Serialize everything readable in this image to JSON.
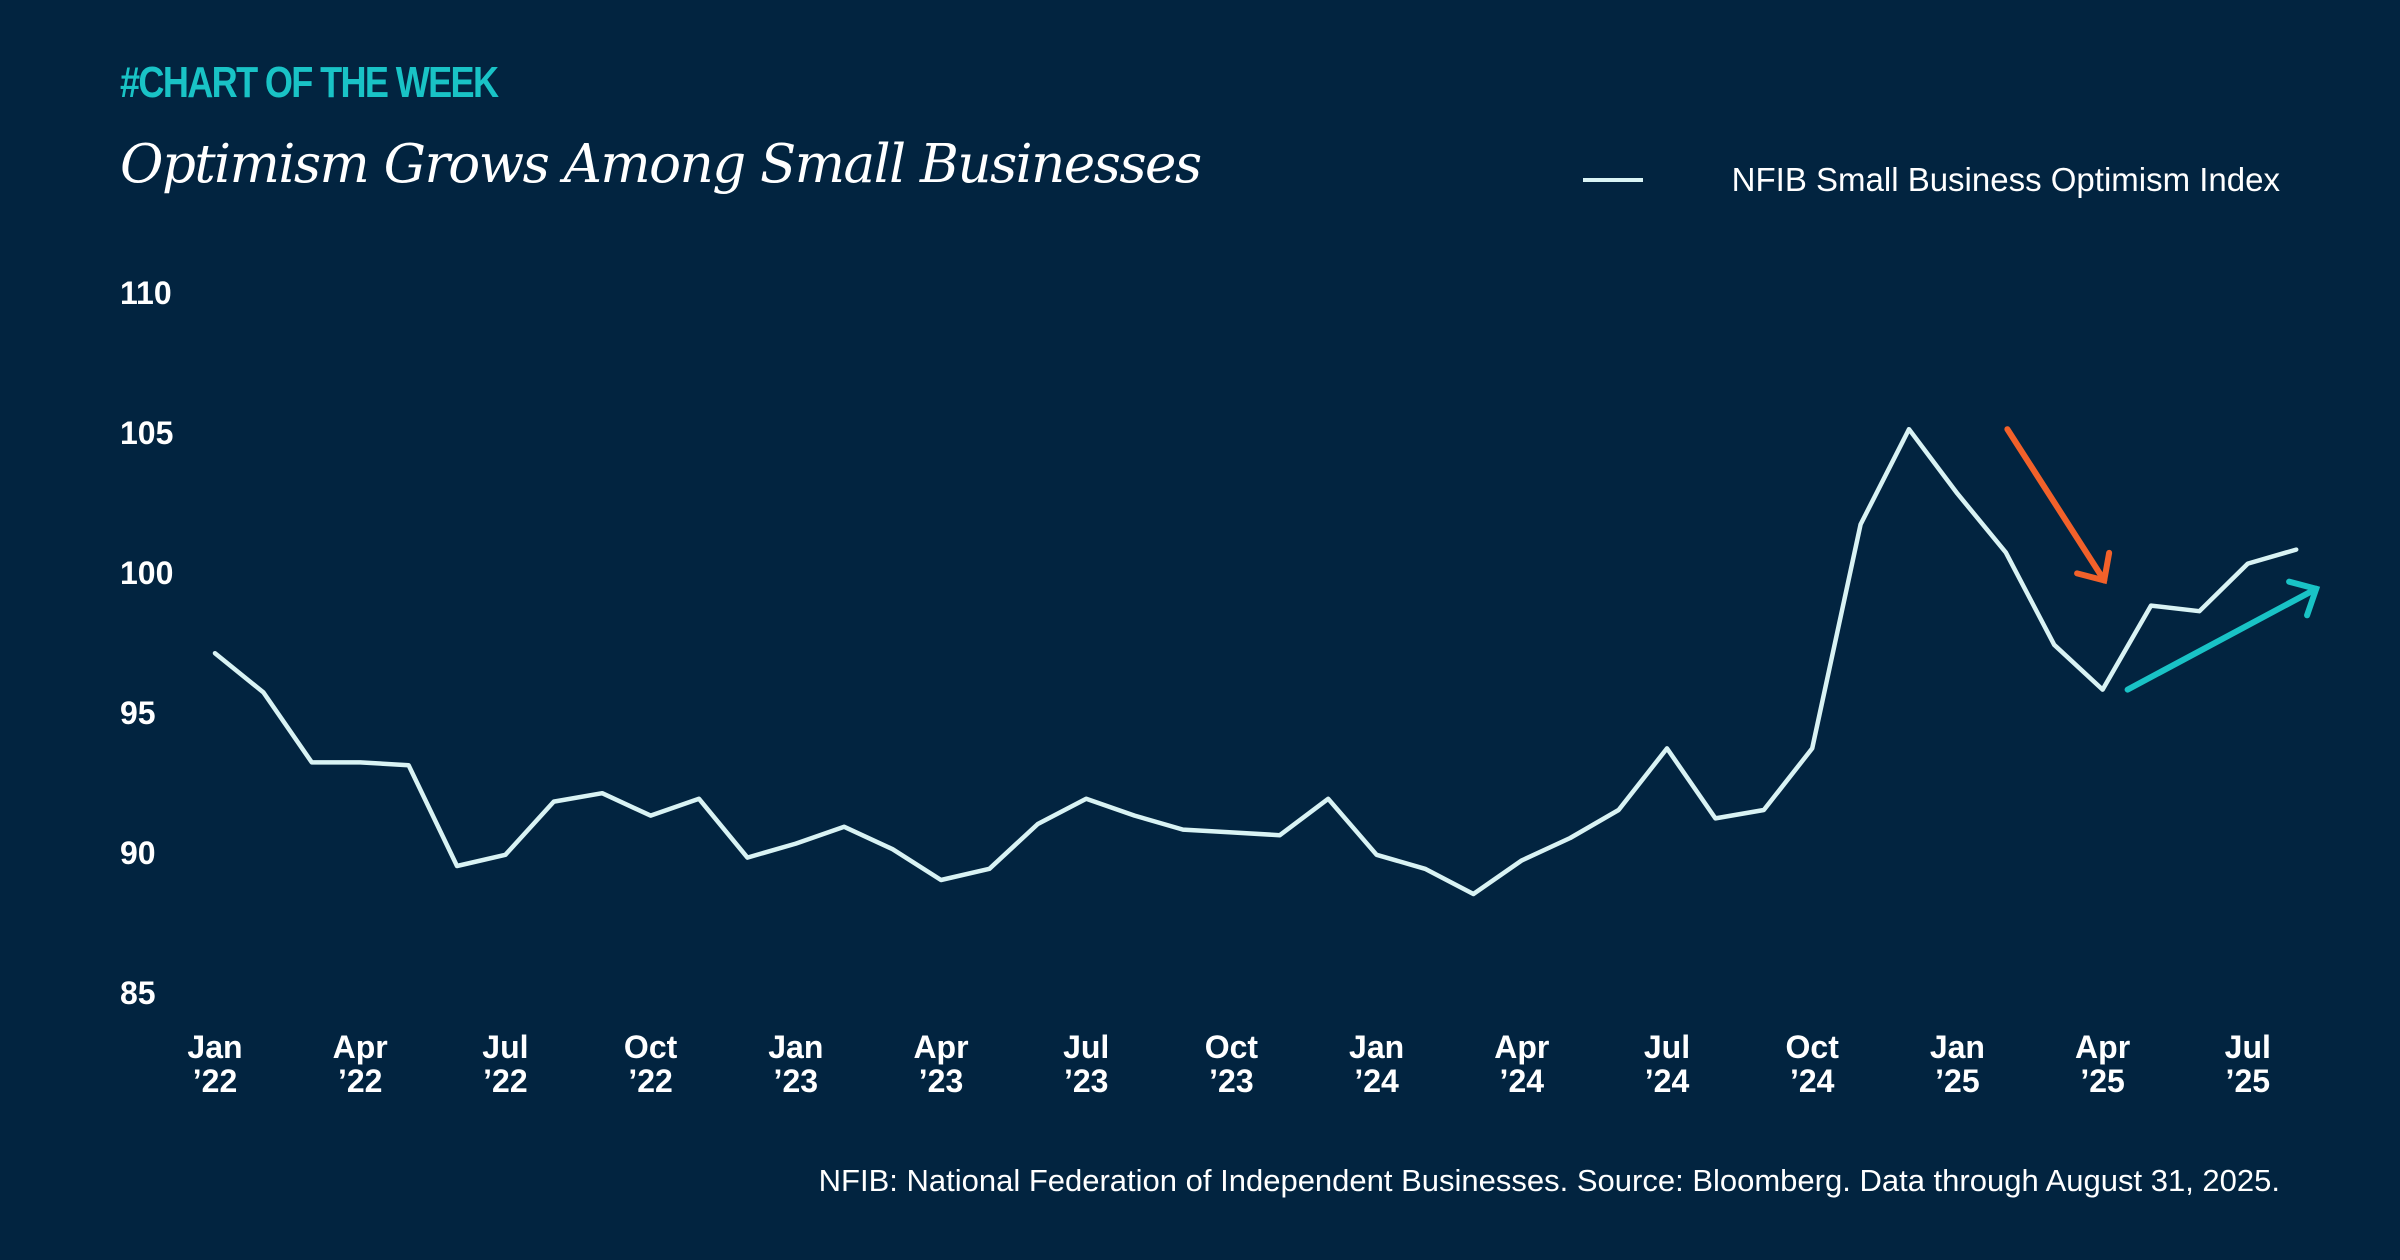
{
  "header": {
    "tagline": "#CHART OF THE WEEK",
    "title": "Optimism Grows Among Small Businesses"
  },
  "footnote": "NFIB: National Federation of Independent Businesses. Source: Bloomberg. Data through August 31, 2025.",
  "colors": {
    "background": "#022440",
    "accent_teal": "#19c3c6",
    "line": "#d9f3f4",
    "arrow_down": "#f2612a",
    "arrow_up": "#19c3c6",
    "text": "#ffffff"
  },
  "chart_data": {
    "type": "line",
    "title": "Optimism Grows Among Small Businesses",
    "xlabel": "",
    "ylabel": "",
    "ylim": [
      85,
      110
    ],
    "yticks": [
      85,
      90,
      95,
      100,
      105,
      110
    ],
    "grid": false,
    "legend_position": "top-right",
    "x_tick_labels": [
      [
        "Jan",
        "’22"
      ],
      [
        "Apr",
        "’22"
      ],
      [
        "Jul",
        "’22"
      ],
      [
        "Oct",
        "’22"
      ],
      [
        "Jan",
        "’23"
      ],
      [
        "Apr",
        "’23"
      ],
      [
        "Jul",
        "’23"
      ],
      [
        "Oct",
        "’23"
      ],
      [
        "Jan",
        "’24"
      ],
      [
        "Apr",
        "’24"
      ],
      [
        "Jul",
        "’24"
      ],
      [
        "Oct",
        "’24"
      ],
      [
        "Jan",
        "’25"
      ],
      [
        "Apr",
        "’25"
      ],
      [
        "Jul",
        "’25"
      ]
    ],
    "x": [
      "2022-01",
      "2022-02",
      "2022-03",
      "2022-04",
      "2022-05",
      "2022-06",
      "2022-07",
      "2022-08",
      "2022-09",
      "2022-10",
      "2022-11",
      "2022-12",
      "2023-01",
      "2023-02",
      "2023-03",
      "2023-04",
      "2023-05",
      "2023-06",
      "2023-07",
      "2023-08",
      "2023-09",
      "2023-10",
      "2023-11",
      "2023-12",
      "2024-01",
      "2024-02",
      "2024-03",
      "2024-04",
      "2024-05",
      "2024-06",
      "2024-07",
      "2024-08",
      "2024-09",
      "2024-10",
      "2024-11",
      "2024-12",
      "2025-01",
      "2025-02",
      "2025-03",
      "2025-04",
      "2025-05",
      "2025-06",
      "2025-07",
      "2025-08"
    ],
    "series": [
      {
        "name": "NFIB Small Business Optimism Index",
        "values": [
          97.1,
          95.7,
          93.2,
          93.2,
          93.1,
          89.5,
          89.9,
          91.8,
          92.1,
          91.3,
          91.9,
          89.8,
          90.3,
          90.9,
          90.1,
          89.0,
          89.4,
          91.0,
          91.9,
          91.3,
          90.8,
          90.7,
          90.6,
          91.9,
          89.9,
          89.4,
          88.5,
          89.7,
          90.5,
          91.5,
          93.7,
          91.2,
          91.5,
          93.7,
          101.7,
          105.1,
          102.8,
          100.7,
          97.4,
          95.8,
          98.8,
          98.6,
          100.3,
          100.8
        ]
      }
    ],
    "annotations": [
      {
        "type": "arrow",
        "direction": "down",
        "color": "#f2612a",
        "from": [
          "2025-01",
          105.1
        ],
        "to": [
          "2025-03",
          99.7
        ]
      },
      {
        "type": "arrow",
        "direction": "up",
        "color": "#19c3c6",
        "from": [
          "2025-04",
          95.8
        ],
        "to": [
          "2025-08",
          99.4
        ]
      }
    ]
  }
}
